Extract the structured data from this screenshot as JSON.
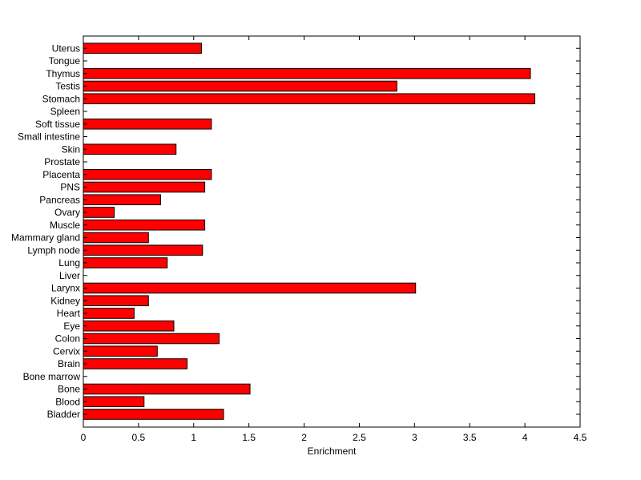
{
  "chart_data": {
    "type": "bar",
    "orientation": "horizontal",
    "title": "",
    "xlabel": "Enrichment",
    "ylabel": "",
    "xlim": [
      0,
      4.5
    ],
    "xticks": [
      "0",
      "0.5",
      "1",
      "1.5",
      "2",
      "2.5",
      "3",
      "3.5",
      "4",
      "4.5"
    ],
    "grid": false,
    "bar_color": "#ff0000",
    "categories": [
      "Bladder",
      "Blood",
      "Bone",
      "Bone marrow",
      "Brain",
      "Cervix",
      "Colon",
      "Eye",
      "Heart",
      "Kidney",
      "Larynx",
      "Liver",
      "Lung",
      "Lymph node",
      "Mammary gland",
      "Muscle",
      "Ovary",
      "Pancreas",
      "PNS",
      "Placenta",
      "Prostate",
      "Skin",
      "Small intestine",
      "Soft tissue",
      "Spleen",
      "Stomach",
      "Testis",
      "Thymus",
      "Tongue",
      "Uterus"
    ],
    "values": [
      1.27,
      0.55,
      1.51,
      0,
      0.94,
      0.67,
      1.23,
      0.82,
      0.46,
      0.59,
      3.01,
      0,
      0.76,
      1.08,
      0.59,
      1.1,
      0.28,
      0.7,
      1.1,
      1.16,
      0,
      0.84,
      0,
      1.16,
      0,
      4.09,
      2.84,
      4.05,
      0,
      1.07
    ]
  }
}
